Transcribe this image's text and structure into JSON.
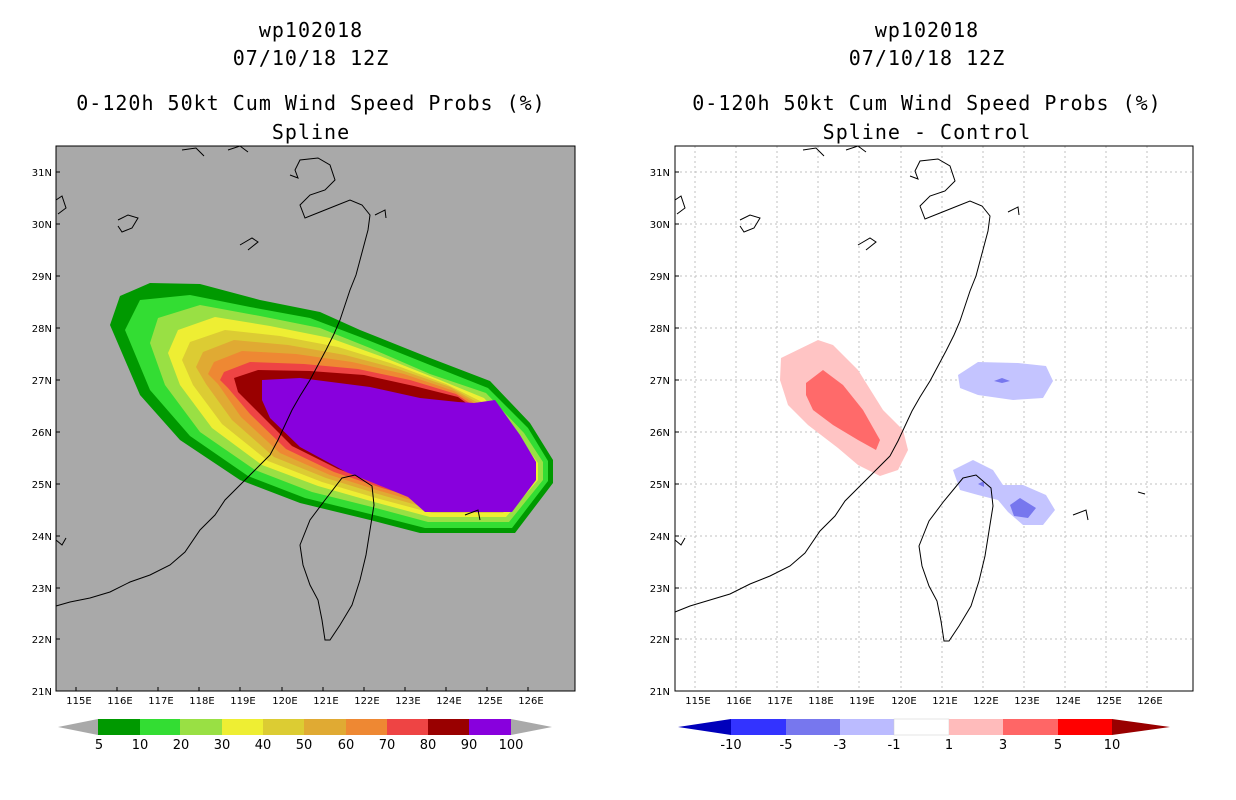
{
  "left": {
    "title_storm": "wp102018",
    "title_date": "07/10/18 12Z",
    "title_product": "0-120h 50kt Cum Wind Speed Probs (%)",
    "title_sub": "Spline",
    "colorbar": {
      "labels": [
        "5",
        "10",
        "20",
        "30",
        "40",
        "50",
        "60",
        "70",
        "80",
        "90",
        "100"
      ],
      "colors": [
        "#009900",
        "#33dd33",
        "#99e044",
        "#eeee33",
        "#dccc33",
        "#e0aa33",
        "#ee8833",
        "#ee4444",
        "#990000",
        "#8800dd"
      ]
    }
  },
  "right": {
    "title_storm": "wp102018",
    "title_date": "07/10/18 12Z",
    "title_product": "0-120h 50kt Cum Wind Speed Probs (%)",
    "title_sub": "Spline - Control",
    "colorbar": {
      "labels": [
        "-10",
        "-5",
        "-3",
        "-1",
        "1",
        "3",
        "5",
        "10"
      ],
      "colors": [
        "#0000bb",
        "#3333ff",
        "#7777ee",
        "#bbbbff",
        "#ffffff",
        "#ffbbbb",
        "#ff6666",
        "#ff0000",
        "#990000"
      ]
    }
  },
  "axes": {
    "lon_labels": [
      "115E",
      "116E",
      "117E",
      "118E",
      "119E",
      "120E",
      "121E",
      "122E",
      "123E",
      "124E",
      "125E",
      "126E"
    ],
    "lat_labels": [
      "31N",
      "30N",
      "29N",
      "28N",
      "27N",
      "26N",
      "25N",
      "24N",
      "23N",
      "22N",
      "21N"
    ]
  },
  "colors": {
    "land_bg_left": "#a9a9a9",
    "frame": "#000000",
    "grid": "#bbbbbb"
  }
}
